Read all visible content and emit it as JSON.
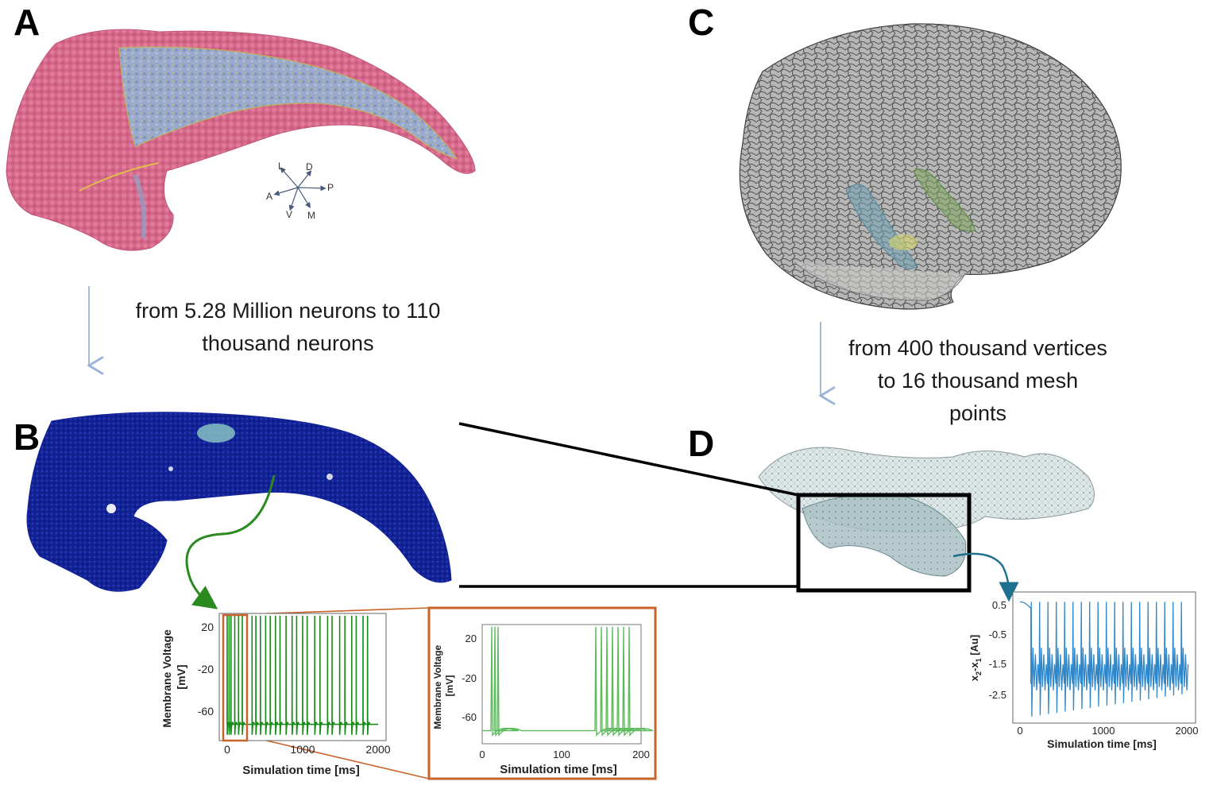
{
  "panels": {
    "a": "A",
    "b": "B",
    "c": "C",
    "d": "D"
  },
  "orientation": {
    "L": "L",
    "D": "D",
    "A": "A",
    "P": "P",
    "V": "V",
    "M": "M"
  },
  "captions": {
    "left_line1": "from 5.28 Million neurons to 110",
    "left_line2": "thousand neurons",
    "right_line1": "from 400 thousand vertices",
    "right_line2": "to 16 thousand mesh",
    "right_line3": "points"
  },
  "colors": {
    "hippocampus_surface": "#d5688a",
    "hippocampus_interior": "#8fa3c8",
    "neuron_dots": "#13239a",
    "spike_green": "#1a8a1a",
    "zoom_orange": "#c8632a",
    "mesh_gray": "#555555",
    "signal_blue": "#2f86c8",
    "arrow_blue": "#9bb3d4",
    "arrow_teal": "#1f6f8f"
  },
  "chart_data": [
    {
      "type": "line",
      "name_ref": "membrane-voltage-full",
      "title": "",
      "xlabel": "Simulation time [ms]",
      "ylabel": "Membrane Voltage [mV]",
      "xlim": [
        0,
        2000
      ],
      "ylim": [
        -80,
        30
      ],
      "xticks": [
        "0",
        "1000",
        "2000"
      ],
      "yticks": [
        "20",
        "-20",
        "-60"
      ],
      "spike_times_ms": [
        0,
        25,
        50,
        100,
        150,
        200,
        330,
        380,
        440,
        510,
        570,
        640,
        700,
        780,
        860,
        920,
        1000,
        1060,
        1160,
        1230,
        1330,
        1390,
        1490,
        1560,
        1650,
        1710,
        1800,
        1860
      ],
      "spike_peak_mv": 28,
      "resting_mv": -66,
      "trough_mv": -75
    },
    {
      "type": "line",
      "name_ref": "membrane-voltage-zoom",
      "title": "",
      "xlabel": "Simulation time [ms]",
      "ylabel": "Membrane Voltage [mV]",
      "xlim": [
        0,
        200
      ],
      "ylim": [
        -80,
        30
      ],
      "xticks": [
        "0",
        "100",
        "200"
      ],
      "yticks": [
        "20",
        "-20",
        "-60"
      ],
      "spike_times_ms": [
        12,
        16,
        20,
        143,
        150,
        157,
        164,
        171,
        178,
        185
      ],
      "spike_peak_mv": 28,
      "resting_mv": -68
    },
    {
      "type": "line",
      "name_ref": "x2-minus-x1",
      "title": "",
      "xlabel": "Simulation time [ms]",
      "ylabel": "x2-x1 [Au]",
      "xlim": [
        0,
        2000
      ],
      "ylim": [
        -3.2,
        0.8
      ],
      "xticks": [
        "0",
        "1000",
        "2000"
      ],
      "yticks": [
        "0.5",
        "-0.5",
        "-1.5",
        "-2.5"
      ],
      "burst_period_ms": 100,
      "burst_start_ms": 130,
      "peak_value": 0.5,
      "trough_value": -3.0
    }
  ]
}
